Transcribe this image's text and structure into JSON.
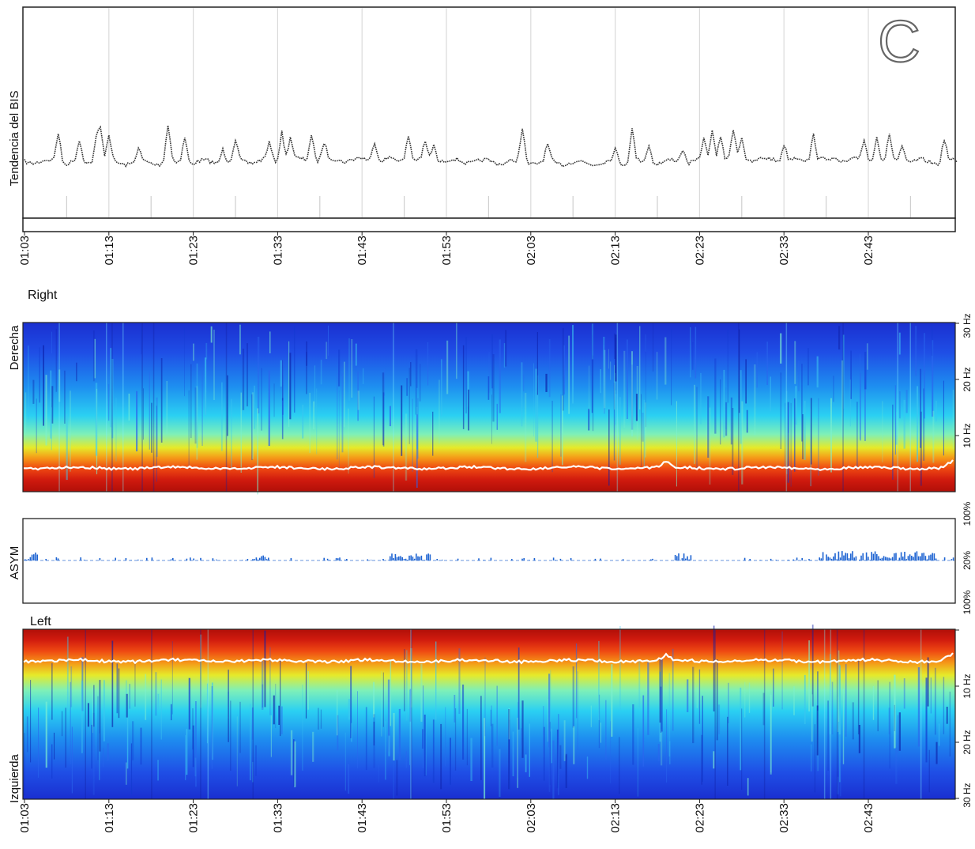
{
  "figure": {
    "panel_letter": "C"
  },
  "time_ticks": [
    "01:03",
    "01:13",
    "01:23",
    "01:33",
    "01:43",
    "01:53",
    "02:03",
    "02:13",
    "02:23",
    "02:33",
    "02:43"
  ],
  "chart_data": [
    {
      "type": "line",
      "name": "bis_trend",
      "title": "",
      "ylabel": "Tendencia del BIS",
      "xlabel": "",
      "x_ticks": [
        "01:03",
        "01:13",
        "01:23",
        "01:33",
        "01:43",
        "01:53",
        "02:03",
        "02:13",
        "02:23",
        "02:33",
        "02:43"
      ],
      "x_range_min": [
        0,
        110
      ],
      "grid": "vertical",
      "series_style": "dotted-black",
      "trend_peaks": [
        {
          "t": 4,
          "v": 0.9
        },
        {
          "t": 6.5,
          "v": 0.6
        },
        {
          "t": 8.5,
          "v": 0.7
        },
        {
          "t": 9,
          "v": 1.0
        },
        {
          "t": 10,
          "v": 0.8
        },
        {
          "t": 13.5,
          "v": 0.4
        },
        {
          "t": 17,
          "v": 1.1
        },
        {
          "t": 19,
          "v": 0.8
        },
        {
          "t": 23.5,
          "v": 0.4
        },
        {
          "t": 25,
          "v": 0.6
        },
        {
          "t": 29,
          "v": 0.5
        },
        {
          "t": 30.5,
          "v": 0.9
        },
        {
          "t": 31.5,
          "v": 0.7
        },
        {
          "t": 34,
          "v": 0.8
        },
        {
          "t": 35.5,
          "v": 0.5
        },
        {
          "t": 41.5,
          "v": 0.6
        },
        {
          "t": 45.5,
          "v": 0.8
        },
        {
          "t": 47.5,
          "v": 0.5
        },
        {
          "t": 48.5,
          "v": 0.5
        },
        {
          "t": 59,
          "v": 1.0
        },
        {
          "t": 62,
          "v": 0.5
        },
        {
          "t": 70,
          "v": 0.4
        },
        {
          "t": 72,
          "v": 1.0
        },
        {
          "t": 74,
          "v": 0.5
        },
        {
          "t": 78,
          "v": 0.4
        },
        {
          "t": 80.5,
          "v": 0.6
        },
        {
          "t": 81.5,
          "v": 0.9
        },
        {
          "t": 82.5,
          "v": 0.8
        },
        {
          "t": 84,
          "v": 0.9
        },
        {
          "t": 85,
          "v": 0.7
        },
        {
          "t": 90,
          "v": 0.5
        },
        {
          "t": 93.5,
          "v": 0.8
        },
        {
          "t": 99.5,
          "v": 0.6
        },
        {
          "t": 101,
          "v": 0.8
        },
        {
          "t": 102.5,
          "v": 0.7
        },
        {
          "t": 104,
          "v": 0.5
        },
        {
          "t": 109,
          "v": 0.7
        }
      ]
    },
    {
      "type": "heatmap",
      "name": "spectrogram_right",
      "title": "Right",
      "ylabel": "Derecha",
      "y_ticks": [
        "30 Hz",
        "20 Hz",
        "10 Hz"
      ],
      "y_range_hz": [
        0,
        30
      ],
      "colormap": "jet (blue = low power, red = high power)",
      "sef_line_color": "#ffffff",
      "sef_line_hz": 4
    },
    {
      "type": "bar",
      "name": "asymmetry",
      "title": "",
      "ylabel": "ASYM",
      "y_ticks": [
        "100%",
        "20%",
        "100%"
      ],
      "bar_color": "#1e64d2",
      "baseline_color": "#9ab8e8"
    },
    {
      "type": "heatmap",
      "name": "spectrogram_left",
      "title": "Left",
      "ylabel": "Izquierda",
      "y_ticks": [
        "10 Hz",
        "20 Hz",
        "30 Hz"
      ],
      "y_range_hz": [
        0,
        30
      ],
      "colormap": "jet (red = high power at low frequency on top)",
      "sef_line_color": "#ffffff",
      "sef_line_hz": 4,
      "x_ticks": [
        "01:03",
        "01:13",
        "01:23",
        "01:33",
        "01:43",
        "01:53",
        "02:03",
        "02:13",
        "02:23",
        "02:33",
        "02:43"
      ]
    }
  ]
}
